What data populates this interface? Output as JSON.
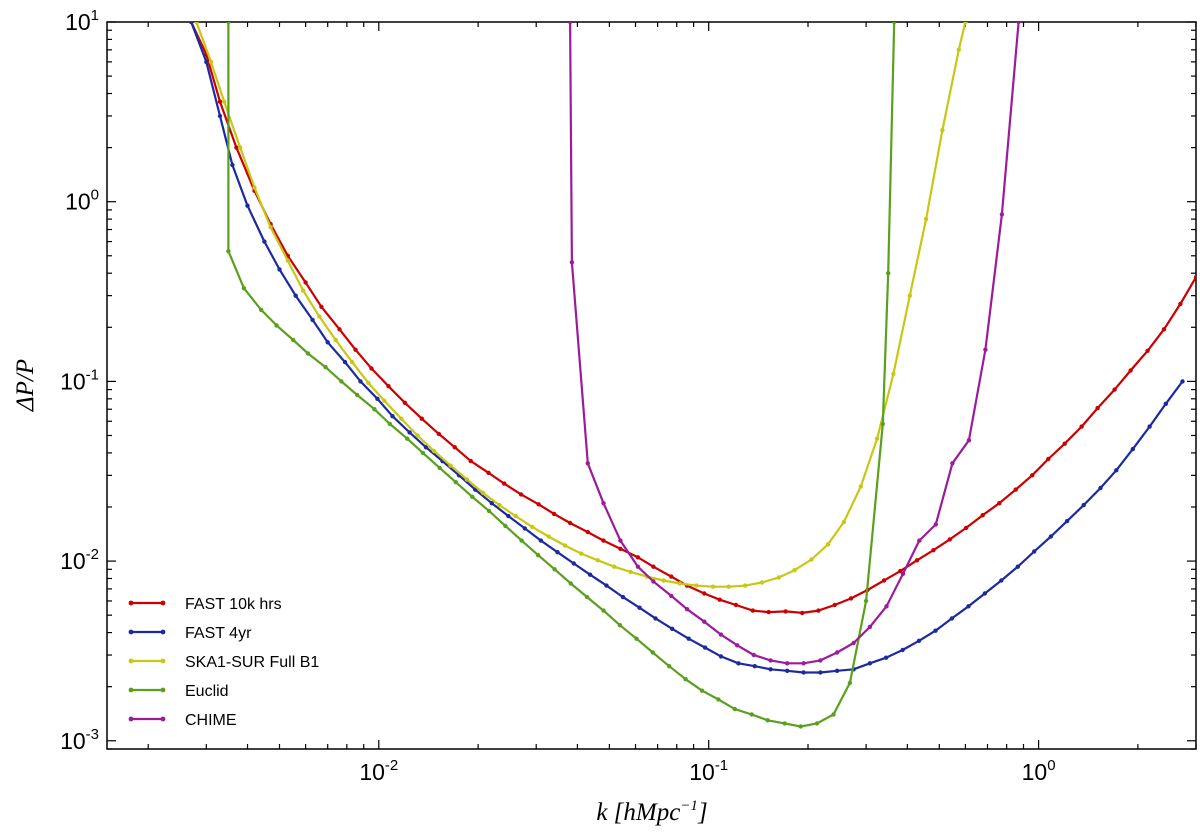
{
  "chart_data": {
    "type": "line",
    "title": "",
    "xlabel": "k [hMpc^-1]",
    "ylabel": "ΔP/P",
    "xscale": "log",
    "yscale": "log",
    "xlim": [
      0.0015,
      3.0
    ],
    "ylim": [
      0.0009,
      10
    ],
    "legend_position": "bottom-left",
    "x_ticks": [
      {
        "value": 0.01,
        "base": "10",
        "exp": "-2"
      },
      {
        "value": 0.1,
        "base": "10",
        "exp": "-1"
      },
      {
        "value": 1,
        "base": "10",
        "exp": "0"
      }
    ],
    "y_ticks": [
      {
        "value": 0.001,
        "base": "10",
        "exp": "-3"
      },
      {
        "value": 0.01,
        "base": "10",
        "exp": "-2"
      },
      {
        "value": 0.1,
        "base": "10",
        "exp": "-1"
      },
      {
        "value": 1,
        "base": "10",
        "exp": "0"
      },
      {
        "value": 10,
        "base": "10",
        "exp": "1"
      }
    ],
    "series": [
      {
        "name": "FAST 10k hrs",
        "color": "#cc0000",
        "points": [
          [
            0.0027,
            10
          ],
          [
            0.003,
            6.6
          ],
          [
            0.0033,
            3.6
          ],
          [
            0.0037,
            2.0
          ],
          [
            0.0042,
            1.15
          ],
          [
            0.0047,
            0.75
          ],
          [
            0.0053,
            0.5
          ],
          [
            0.006,
            0.355
          ],
          [
            0.0067,
            0.26
          ],
          [
            0.0076,
            0.195
          ],
          [
            0.0085,
            0.15
          ],
          [
            0.0095,
            0.118
          ],
          [
            0.0107,
            0.094
          ],
          [
            0.012,
            0.076
          ],
          [
            0.0135,
            0.062
          ],
          [
            0.0152,
            0.051
          ],
          [
            0.017,
            0.043
          ],
          [
            0.019,
            0.036
          ],
          [
            0.0215,
            0.031
          ],
          [
            0.024,
            0.027
          ],
          [
            0.027,
            0.0235
          ],
          [
            0.0305,
            0.0207
          ],
          [
            0.034,
            0.0183
          ],
          [
            0.038,
            0.0163
          ],
          [
            0.043,
            0.0145
          ],
          [
            0.048,
            0.013
          ],
          [
            0.054,
            0.0117
          ],
          [
            0.061,
            0.0105
          ],
          [
            0.068,
            0.0093
          ],
          [
            0.077,
            0.0082
          ],
          [
            0.086,
            0.0073
          ],
          [
            0.097,
            0.0066
          ],
          [
            0.108,
            0.0061
          ],
          [
            0.121,
            0.0057
          ],
          [
            0.136,
            0.0053
          ],
          [
            0.152,
            0.0052
          ],
          [
            0.171,
            0.00525
          ],
          [
            0.192,
            0.00515
          ],
          [
            0.215,
            0.0053
          ],
          [
            0.241,
            0.0057
          ],
          [
            0.27,
            0.0062
          ],
          [
            0.303,
            0.0069
          ],
          [
            0.34,
            0.0078
          ],
          [
            0.381,
            0.0088
          ],
          [
            0.428,
            0.0101
          ],
          [
            0.48,
            0.0115
          ],
          [
            0.538,
            0.0132
          ],
          [
            0.603,
            0.0153
          ],
          [
            0.677,
            0.018
          ],
          [
            0.76,
            0.021
          ],
          [
            0.852,
            0.025
          ],
          [
            0.956,
            0.03
          ],
          [
            1.07,
            0.037
          ],
          [
            1.2,
            0.045
          ],
          [
            1.35,
            0.056
          ],
          [
            1.51,
            0.071
          ],
          [
            1.7,
            0.09
          ],
          [
            1.9,
            0.115
          ],
          [
            2.14,
            0.148
          ],
          [
            2.4,
            0.195
          ],
          [
            2.69,
            0.27
          ],
          [
            3.0,
            0.38
          ]
        ]
      },
      {
        "name": "FAST 4yr",
        "color": "#1c2aa0",
        "points": [
          [
            0.0027,
            10
          ],
          [
            0.003,
            6.0
          ],
          [
            0.0033,
            3.0
          ],
          [
            0.0036,
            1.6
          ],
          [
            0.004,
            0.95
          ],
          [
            0.0045,
            0.6
          ],
          [
            0.005,
            0.42
          ],
          [
            0.0056,
            0.3
          ],
          [
            0.0063,
            0.22
          ],
          [
            0.007,
            0.165
          ],
          [
            0.0079,
            0.128
          ],
          [
            0.0088,
            0.1
          ],
          [
            0.0099,
            0.08
          ],
          [
            0.011,
            0.064
          ],
          [
            0.0124,
            0.052
          ],
          [
            0.0139,
            0.043
          ],
          [
            0.0156,
            0.036
          ],
          [
            0.0175,
            0.03
          ],
          [
            0.0196,
            0.025
          ],
          [
            0.022,
            0.021
          ],
          [
            0.0247,
            0.0178
          ],
          [
            0.0277,
            0.0152
          ],
          [
            0.031,
            0.013
          ],
          [
            0.0348,
            0.0112
          ],
          [
            0.039,
            0.0097
          ],
          [
            0.0437,
            0.0084
          ],
          [
            0.049,
            0.0073
          ],
          [
            0.055,
            0.0063
          ],
          [
            0.0617,
            0.0055
          ],
          [
            0.069,
            0.0048
          ],
          [
            0.0775,
            0.0042
          ],
          [
            0.087,
            0.0037
          ],
          [
            0.0975,
            0.0033
          ],
          [
            0.109,
            0.00295
          ],
          [
            0.123,
            0.0027
          ],
          [
            0.138,
            0.0026
          ],
          [
            0.154,
            0.0025
          ],
          [
            0.173,
            0.00245
          ],
          [
            0.194,
            0.0024
          ],
          [
            0.218,
            0.0024
          ],
          [
            0.245,
            0.00245
          ],
          [
            0.275,
            0.0025
          ],
          [
            0.308,
            0.0027
          ],
          [
            0.345,
            0.0029
          ],
          [
            0.387,
            0.0032
          ],
          [
            0.434,
            0.0036
          ],
          [
            0.487,
            0.0041
          ],
          [
            0.546,
            0.0048
          ],
          [
            0.613,
            0.0056
          ],
          [
            0.687,
            0.0066
          ],
          [
            0.771,
            0.0078
          ],
          [
            0.865,
            0.0093
          ],
          [
            0.97,
            0.0113
          ],
          [
            1.09,
            0.0137
          ],
          [
            1.22,
            0.0167
          ],
          [
            1.37,
            0.0205
          ],
          [
            1.54,
            0.0255
          ],
          [
            1.72,
            0.032
          ],
          [
            1.93,
            0.042
          ],
          [
            2.17,
            0.056
          ],
          [
            2.43,
            0.075
          ],
          [
            2.73,
            0.1
          ]
        ]
      },
      {
        "name": "SKA1-SUR Full B1",
        "color": "#c8c814",
        "points": [
          [
            0.0028,
            10
          ],
          [
            0.0031,
            6.0
          ],
          [
            0.0034,
            3.6
          ],
          [
            0.0038,
            2.0
          ],
          [
            0.0042,
            1.2
          ],
          [
            0.0047,
            0.72
          ],
          [
            0.0053,
            0.47
          ],
          [
            0.0059,
            0.32
          ],
          [
            0.0066,
            0.23
          ],
          [
            0.0074,
            0.17
          ],
          [
            0.0083,
            0.128
          ],
          [
            0.0093,
            0.098
          ],
          [
            0.0104,
            0.078
          ],
          [
            0.0117,
            0.062
          ],
          [
            0.0131,
            0.05
          ],
          [
            0.0147,
            0.041
          ],
          [
            0.0165,
            0.034
          ],
          [
            0.0185,
            0.0285
          ],
          [
            0.0207,
            0.024
          ],
          [
            0.0232,
            0.0205
          ],
          [
            0.026,
            0.0178
          ],
          [
            0.0292,
            0.0155
          ],
          [
            0.0327,
            0.0137
          ],
          [
            0.0367,
            0.0122
          ],
          [
            0.0411,
            0.011
          ],
          [
            0.0461,
            0.0101
          ],
          [
            0.0517,
            0.0093
          ],
          [
            0.058,
            0.0087
          ],
          [
            0.065,
            0.0082
          ],
          [
            0.073,
            0.0078
          ],
          [
            0.0818,
            0.0075
          ],
          [
            0.0917,
            0.0073
          ],
          [
            0.103,
            0.0072
          ],
          [
            0.115,
            0.0072
          ],
          [
            0.129,
            0.0073
          ],
          [
            0.145,
            0.0076
          ],
          [
            0.163,
            0.0081
          ],
          [
            0.182,
            0.0089
          ],
          [
            0.205,
            0.0102
          ],
          [
            0.23,
            0.0124
          ],
          [
            0.257,
            0.0165
          ],
          [
            0.289,
            0.026
          ],
          [
            0.324,
            0.048
          ],
          [
            0.363,
            0.11
          ],
          [
            0.407,
            0.3
          ],
          [
            0.456,
            0.8
          ],
          [
            0.511,
            2.5
          ],
          [
            0.573,
            7.0
          ],
          [
            0.6,
            10
          ]
        ]
      },
      {
        "name": "Euclid",
        "color": "#5aa01e",
        "points": [
          [
            0.0035,
            10
          ],
          [
            0.0035,
            0.53
          ],
          [
            0.0039,
            0.33
          ],
          [
            0.0044,
            0.25
          ],
          [
            0.0049,
            0.205
          ],
          [
            0.0055,
            0.17
          ],
          [
            0.0061,
            0.143
          ],
          [
            0.0069,
            0.12
          ],
          [
            0.0077,
            0.1
          ],
          [
            0.0086,
            0.084
          ],
          [
            0.0097,
            0.07
          ],
          [
            0.0108,
            0.058
          ],
          [
            0.0122,
            0.048
          ],
          [
            0.0136,
            0.04
          ],
          [
            0.0153,
            0.033
          ],
          [
            0.0171,
            0.0275
          ],
          [
            0.0192,
            0.0228
          ],
          [
            0.0216,
            0.019
          ],
          [
            0.0242,
            0.0157
          ],
          [
            0.0271,
            0.013
          ],
          [
            0.0304,
            0.0108
          ],
          [
            0.0341,
            0.009
          ],
          [
            0.0382,
            0.0075
          ],
          [
            0.0428,
            0.0063
          ],
          [
            0.048,
            0.0053
          ],
          [
            0.0538,
            0.0044
          ],
          [
            0.0604,
            0.0037
          ],
          [
            0.0677,
            0.0031
          ],
          [
            0.0759,
            0.0026
          ],
          [
            0.0851,
            0.0022
          ],
          [
            0.0955,
            0.0019
          ],
          [
            0.107,
            0.0017
          ],
          [
            0.12,
            0.0015
          ],
          [
            0.135,
            0.0014
          ],
          [
            0.151,
            0.0013
          ],
          [
            0.17,
            0.00125
          ],
          [
            0.19,
            0.0012
          ],
          [
            0.213,
            0.00125
          ],
          [
            0.239,
            0.0014
          ],
          [
            0.268,
            0.0021
          ],
          [
            0.3,
            0.006
          ],
          [
            0.337,
            0.058
          ],
          [
            0.35,
            0.4
          ],
          [
            0.365,
            10
          ]
        ]
      },
      {
        "name": "CHIME",
        "color": "#9b1b9b",
        "points": [
          [
            0.038,
            10
          ],
          [
            0.0385,
            0.46
          ],
          [
            0.043,
            0.035
          ],
          [
            0.048,
            0.021
          ],
          [
            0.054,
            0.013
          ],
          [
            0.061,
            0.0093
          ],
          [
            0.068,
            0.0077
          ],
          [
            0.077,
            0.0064
          ],
          [
            0.086,
            0.0054
          ],
          [
            0.097,
            0.0046
          ],
          [
            0.109,
            0.0039
          ],
          [
            0.122,
            0.0034
          ],
          [
            0.137,
            0.003
          ],
          [
            0.154,
            0.0028
          ],
          [
            0.173,
            0.0027
          ],
          [
            0.194,
            0.0027
          ],
          [
            0.218,
            0.0028
          ],
          [
            0.245,
            0.0031
          ],
          [
            0.275,
            0.0035
          ],
          [
            0.308,
            0.0043
          ],
          [
            0.346,
            0.0056
          ],
          [
            0.388,
            0.0085
          ],
          [
            0.435,
            0.013
          ],
          [
            0.488,
            0.016
          ],
          [
            0.548,
            0.035
          ],
          [
            0.615,
            0.047
          ],
          [
            0.69,
            0.15
          ],
          [
            0.774,
            0.85
          ],
          [
            0.87,
            10
          ]
        ]
      }
    ]
  }
}
